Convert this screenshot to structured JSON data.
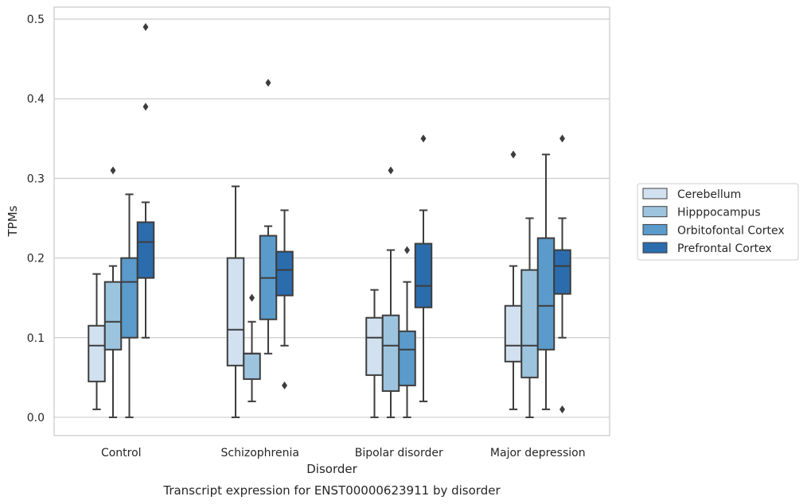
{
  "chart_data": {
    "type": "box",
    "title": "",
    "caption": "Transcript expression for ENST00000623911 by disorder",
    "xlabel": "Disorder",
    "ylabel": "TPMs",
    "ylim": [
      -0.023,
      0.515
    ],
    "yticks": [
      "0.0",
      "0.1",
      "0.2",
      "0.3",
      "0.4",
      "0.5"
    ],
    "ytick_values": [
      0,
      0.1,
      0.2,
      0.3,
      0.4,
      0.5
    ],
    "grid": "horizontal",
    "legend_position": "right",
    "categories": [
      "Control",
      "Schizophrenia",
      "Bipolar disorder",
      "Major depression"
    ],
    "series": [
      {
        "name": "Cerebellum",
        "color": "#d1e1f0",
        "boxes": [
          {
            "whislo": 0.01,
            "q1": 0.045,
            "med": 0.09,
            "q3": 0.115,
            "whishi": 0.18,
            "fliers": []
          },
          {
            "whislo": 0.0,
            "q1": 0.065,
            "med": 0.11,
            "q3": 0.2,
            "whishi": 0.29,
            "fliers": []
          },
          {
            "whislo": 0.0,
            "q1": 0.053,
            "med": 0.1,
            "q3": 0.125,
            "whishi": 0.16,
            "fliers": []
          },
          {
            "whislo": 0.01,
            "q1": 0.07,
            "med": 0.09,
            "q3": 0.14,
            "whishi": 0.19,
            "fliers": [
              0.33
            ]
          }
        ]
      },
      {
        "name": "Hipppocampus",
        "color": "#9dc4de",
        "boxes": [
          {
            "whislo": 0.0,
            "q1": 0.085,
            "med": 0.12,
            "q3": 0.17,
            "whishi": 0.19,
            "fliers": [
              0.31
            ]
          },
          {
            "whislo": 0.02,
            "q1": 0.048,
            "med": 0.08,
            "q3": 0.08,
            "whishi": 0.12,
            "fliers": [
              0.15
            ]
          },
          {
            "whislo": 0.0,
            "q1": 0.033,
            "med": 0.09,
            "q3": 0.128,
            "whishi": 0.21,
            "fliers": [
              0.31
            ]
          },
          {
            "whislo": 0.0,
            "q1": 0.05,
            "med": 0.09,
            "q3": 0.185,
            "whishi": 0.25,
            "fliers": []
          }
        ]
      },
      {
        "name": "Orbitofontal Cortex",
        "color": "#5b9bcb",
        "boxes": [
          {
            "whislo": 0.0,
            "q1": 0.1,
            "med": 0.17,
            "q3": 0.2,
            "whishi": 0.28,
            "fliers": []
          },
          {
            "whislo": 0.08,
            "q1": 0.123,
            "med": 0.175,
            "q3": 0.228,
            "whishi": 0.24,
            "fliers": [
              0.42
            ]
          },
          {
            "whislo": 0.0,
            "q1": 0.04,
            "med": 0.085,
            "q3": 0.108,
            "whishi": 0.17,
            "fliers": [
              0.21
            ]
          },
          {
            "whislo": 0.01,
            "q1": 0.085,
            "med": 0.14,
            "q3": 0.225,
            "whishi": 0.33,
            "fliers": []
          }
        ]
      },
      {
        "name": "Prefrontal Cortex",
        "color": "#2b6cad",
        "boxes": [
          {
            "whislo": 0.1,
            "q1": 0.175,
            "med": 0.22,
            "q3": 0.245,
            "whishi": 0.27,
            "fliers": [
              0.39,
              0.49
            ]
          },
          {
            "whislo": 0.09,
            "q1": 0.153,
            "med": 0.185,
            "q3": 0.208,
            "whishi": 0.26,
            "fliers": [
              0.04
            ]
          },
          {
            "whislo": 0.02,
            "q1": 0.138,
            "med": 0.165,
            "q3": 0.218,
            "whishi": 0.26,
            "fliers": [
              0.35
            ]
          },
          {
            "whislo": 0.1,
            "q1": 0.155,
            "med": 0.19,
            "q3": 0.21,
            "whishi": 0.25,
            "fliers": [
              0.35,
              0.01
            ]
          }
        ]
      }
    ]
  }
}
